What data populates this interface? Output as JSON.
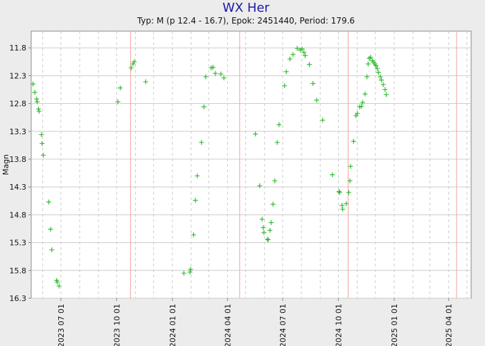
{
  "chart_data": {
    "type": "scatter",
    "title": "WX Her",
    "subtitle": "Typ: M (p 12.4 - 16.7), Epok: 2451440, Period: 179.6",
    "ylabel": "Magn",
    "xlabel": "",
    "y_axis": {
      "inverted": true,
      "min": 11.5,
      "max": 16.3,
      "ticks": [
        "11.8",
        "12.3",
        "12.8",
        "13.3",
        "13.8",
        "14.3",
        "14.8",
        "15.3",
        "15.8",
        "16.3"
      ]
    },
    "x_axis": {
      "min": "2023-05-13",
      "max": "2025-05-08",
      "ticks": [
        "2023 07 01",
        "2023 10 01",
        "2024 01 01",
        "2024 04 01",
        "2024 07 01",
        "2024 10 01",
        "2025 01 01",
        "2025 04 01"
      ]
    },
    "grid": true,
    "maxima_dates": [
      "2023-10-24",
      "2024-04-21",
      "2024-10-17",
      "2025-04-14"
    ],
    "marker": "+",
    "colors": {
      "points": "#33bb33",
      "plot_background": "#ffffff",
      "page_background": "#ececec",
      "grid": "#cccccc",
      "maxima_lines": "#f2a0a0",
      "title": "#1a1aa6",
      "axis": "#888888"
    },
    "points": [
      {
        "x": "2023-05-16",
        "y": 12.45
      },
      {
        "x": "2023-05-19",
        "y": 12.6
      },
      {
        "x": "2023-05-22",
        "y": 12.72
      },
      {
        "x": "2023-05-23",
        "y": 12.77
      },
      {
        "x": "2023-05-25",
        "y": 12.9
      },
      {
        "x": "2023-05-26",
        "y": 12.94
      },
      {
        "x": "2023-05-30",
        "y": 13.36
      },
      {
        "x": "2023-05-31",
        "y": 13.52
      },
      {
        "x": "2023-06-02",
        "y": 13.73
      },
      {
        "x": "2023-06-11",
        "y": 14.57
      },
      {
        "x": "2023-06-14",
        "y": 15.06
      },
      {
        "x": "2023-06-16",
        "y": 15.43
      },
      {
        "x": "2023-06-24",
        "y": 15.98
      },
      {
        "x": "2023-06-25",
        "y": 16.01
      },
      {
        "x": "2023-06-28",
        "y": 16.08
      },
      {
        "x": "2023-10-03",
        "y": 12.77
      },
      {
        "x": "2023-10-07",
        "y": 12.52
      },
      {
        "x": "2023-10-25",
        "y": 12.16
      },
      {
        "x": "2023-10-28",
        "y": 12.09
      },
      {
        "x": "2023-10-30",
        "y": 12.05
      },
      {
        "x": "2023-11-18",
        "y": 12.41
      },
      {
        "x": "2024-01-20",
        "y": 15.85
      },
      {
        "x": "2024-01-30",
        "y": 15.83
      },
      {
        "x": "2024-01-31",
        "y": 15.78
      },
      {
        "x": "2024-02-05",
        "y": 15.16
      },
      {
        "x": "2024-02-08",
        "y": 14.54
      },
      {
        "x": "2024-02-11",
        "y": 14.1
      },
      {
        "x": "2024-02-18",
        "y": 13.5
      },
      {
        "x": "2024-02-22",
        "y": 12.86
      },
      {
        "x": "2024-02-25",
        "y": 12.32
      },
      {
        "x": "2024-03-05",
        "y": 12.16
      },
      {
        "x": "2024-03-08",
        "y": 12.15
      },
      {
        "x": "2024-03-12",
        "y": 12.26
      },
      {
        "x": "2024-03-21",
        "y": 12.27
      },
      {
        "x": "2024-03-26",
        "y": 12.34
      },
      {
        "x": "2024-05-17",
        "y": 13.35
      },
      {
        "x": "2024-05-24",
        "y": 14.28
      },
      {
        "x": "2024-05-28",
        "y": 14.88
      },
      {
        "x": "2024-05-30",
        "y": 15.03
      },
      {
        "x": "2024-05-31",
        "y": 15.12
      },
      {
        "x": "2024-06-06",
        "y": 15.24
      },
      {
        "x": "2024-06-07",
        "y": 15.25
      },
      {
        "x": "2024-06-10",
        "y": 15.08
      },
      {
        "x": "2024-06-12",
        "y": 14.94
      },
      {
        "x": "2024-06-15",
        "y": 14.61
      },
      {
        "x": "2024-06-18",
        "y": 14.19
      },
      {
        "x": "2024-06-22",
        "y": 13.5
      },
      {
        "x": "2024-06-25",
        "y": 13.18
      },
      {
        "x": "2024-07-04",
        "y": 12.48
      },
      {
        "x": "2024-07-07",
        "y": 12.23
      },
      {
        "x": "2024-07-13",
        "y": 12.0
      },
      {
        "x": "2024-07-18",
        "y": 11.92
      },
      {
        "x": "2024-07-25",
        "y": 11.81
      },
      {
        "x": "2024-07-30",
        "y": 11.84
      },
      {
        "x": "2024-08-02",
        "y": 11.82
      },
      {
        "x": "2024-08-05",
        "y": 11.88
      },
      {
        "x": "2024-08-07",
        "y": 11.94
      },
      {
        "x": "2024-08-14",
        "y": 12.1
      },
      {
        "x": "2024-08-20",
        "y": 12.44
      },
      {
        "x": "2024-08-26",
        "y": 12.74
      },
      {
        "x": "2024-09-05",
        "y": 13.1
      },
      {
        "x": "2024-09-21",
        "y": 14.08
      },
      {
        "x": "2024-10-02",
        "y": 14.38
      },
      {
        "x": "2024-10-03",
        "y": 14.4
      },
      {
        "x": "2024-10-07",
        "y": 14.63
      },
      {
        "x": "2024-10-08",
        "y": 14.7
      },
      {
        "x": "2024-10-14",
        "y": 14.6
      },
      {
        "x": "2024-10-18",
        "y": 14.4
      },
      {
        "x": "2024-10-20",
        "y": 14.19
      },
      {
        "x": "2024-10-21",
        "y": 13.93
      },
      {
        "x": "2024-10-26",
        "y": 13.48
      },
      {
        "x": "2024-10-30",
        "y": 13.02
      },
      {
        "x": "2024-11-01",
        "y": 12.98
      },
      {
        "x": "2024-11-05",
        "y": 12.86
      },
      {
        "x": "2024-11-08",
        "y": 12.85
      },
      {
        "x": "2024-11-10",
        "y": 12.78
      },
      {
        "x": "2024-11-14",
        "y": 12.63
      },
      {
        "x": "2024-11-17",
        "y": 12.32
      },
      {
        "x": "2024-11-19",
        "y": 12.09
      },
      {
        "x": "2024-11-21",
        "y": 11.99
      },
      {
        "x": "2024-11-23",
        "y": 11.97
      },
      {
        "x": "2024-11-26",
        "y": 12.03
      },
      {
        "x": "2024-11-28",
        "y": 12.06
      },
      {
        "x": "2024-11-30",
        "y": 12.09
      },
      {
        "x": "2024-12-02",
        "y": 12.12
      },
      {
        "x": "2024-12-04",
        "y": 12.17
      },
      {
        "x": "2024-12-06",
        "y": 12.24
      },
      {
        "x": "2024-12-09",
        "y": 12.32
      },
      {
        "x": "2024-12-11",
        "y": 12.38
      },
      {
        "x": "2024-12-14",
        "y": 12.46
      },
      {
        "x": "2024-12-17",
        "y": 12.55
      },
      {
        "x": "2024-12-19",
        "y": 12.64
      }
    ]
  }
}
